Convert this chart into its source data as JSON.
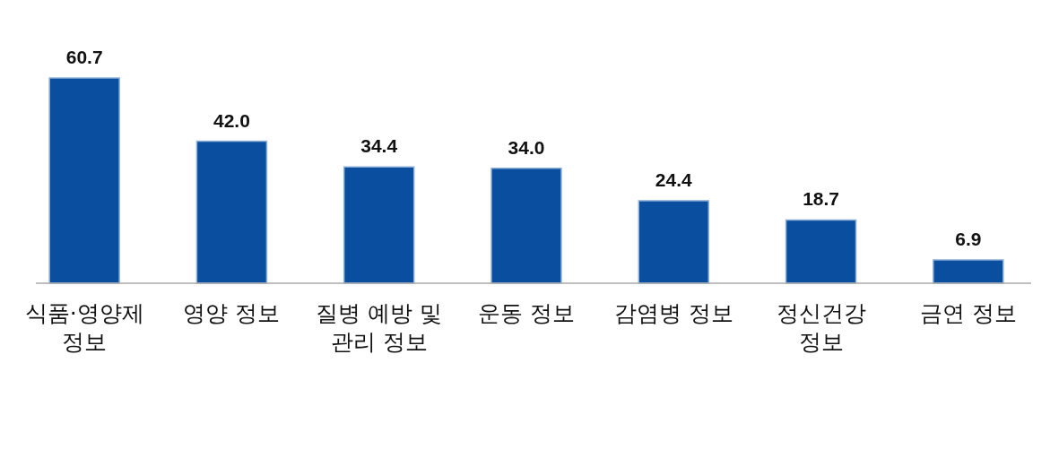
{
  "chart_data": {
    "type": "bar",
    "categories": [
      "식품·영양제 정보",
      "영양 정보",
      "질병 예방 및 관리 정보",
      "운동 정보",
      "감염병 정보",
      "정신건강 정보",
      "금연 정보"
    ],
    "values": [
      60.7,
      42.0,
      34.4,
      34.0,
      24.4,
      18.7,
      6.9
    ],
    "value_labels": [
      "60.7",
      "42.0",
      "34.4",
      "34.0",
      "24.4",
      "18.7",
      "6.9"
    ],
    "color": "#0a4f9f"
  }
}
